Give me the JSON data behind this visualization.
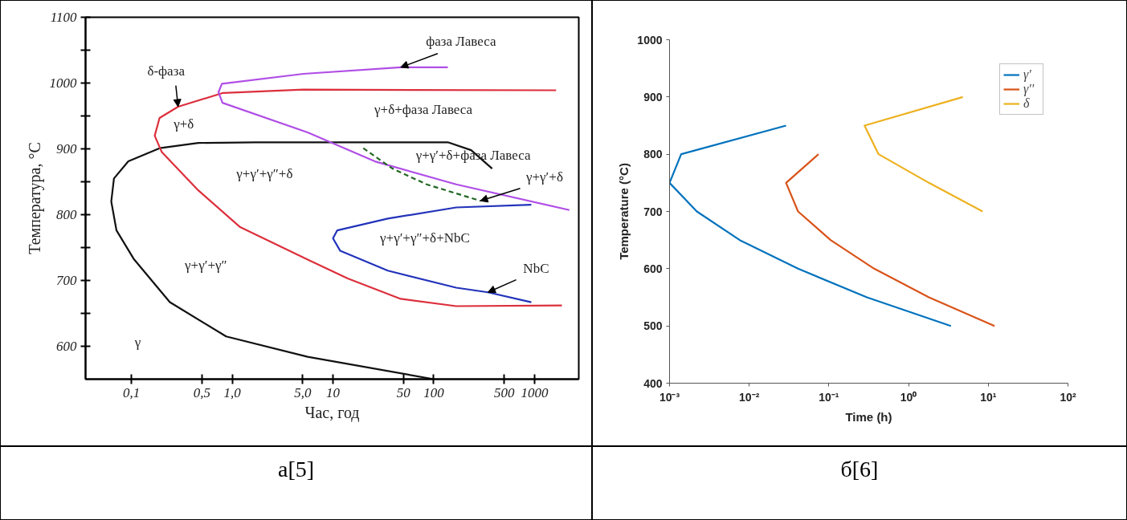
{
  "chart_data": [
    {
      "type": "line",
      "title": "а[5]",
      "xlabel": "Час, год",
      "ylabel": "Температура, °С",
      "log": "x",
      "xlim": [
        0.035,
        2750
      ],
      "ylim": [
        550,
        1100
      ],
      "xticks": [
        {
          "value": 0.1,
          "label": "0,1"
        },
        {
          "value": 0.5,
          "label": "0,5"
        },
        {
          "value": 1,
          "label": "1,0"
        },
        {
          "value": 5,
          "label": "5,0"
        },
        10,
        50,
        100,
        500,
        1000
      ],
      "yticks": [
        600,
        {
          "value": 650,
          "label": null
        },
        700,
        {
          "value": 750,
          "label": null
        },
        800,
        {
          "value": 850,
          "label": null
        },
        900,
        {
          "value": 950,
          "label": null
        },
        1000,
        {
          "value": 1050,
          "label": null
        },
        1100
      ],
      "grid": false,
      "legend": false,
      "series": [
        {
          "color": "#111111",
          "x": [
            100,
            5.6,
            0.87,
            0.24,
            0.105,
            0.071,
            0.063,
            0.067,
            0.093,
            0.19,
            0.46,
            1.7,
            138,
            235,
            380
          ],
          "values": [
            550,
            584,
            615,
            667,
            733,
            776,
            820,
            855,
            881,
            901,
            909,
            910,
            910,
            898,
            870
          ]
        },
        {
          "color": "#dc2f3c",
          "x": [
            1640,
            5.1,
            0.81,
            0.29,
            0.19,
            0.17,
            0.2,
            0.46,
            1.2,
            5.4,
            14,
            47,
            167,
            1870
          ],
          "values": [
            989,
            990,
            985,
            964,
            947,
            920,
            895,
            837,
            781,
            733,
            703,
            672,
            661,
            662
          ]
        },
        {
          "color": "#b04ee6",
          "x": [
            138,
            47,
            5.1,
            0.79,
            0.73,
            0.8,
            5.6,
            26,
            167,
            2220
          ],
          "values": [
            1024,
            1024,
            1014,
            999,
            986,
            970,
            925,
            881,
            846,
            807
          ]
        },
        {
          "color": "#2233bb",
          "x": [
            930,
            167,
            35,
            11,
            10,
            11.8,
            35,
            167,
            345,
            930
          ],
          "values": [
            815,
            811,
            794,
            776,
            764,
            745,
            715,
            689,
            682,
            667
          ]
        },
        {
          "color": "#226622",
          "line_style": "dashed",
          "x": [
            20,
            39,
            85,
            290
          ],
          "values": [
            901,
            870,
            846,
            821
          ]
        }
      ],
      "annotations": [
        {
          "text": "δ-фаза",
          "x": 0.29,
          "y": 964
        },
        {
          "text": "фаза Лавеса",
          "x": 47,
          "y": 1024
        },
        {
          "text": "γ+γ′+δ",
          "x": 290,
          "y": 821
        },
        {
          "text": "NbC",
          "x": 345,
          "y": 682
        },
        "γ+δ",
        "γ+δ+фаза Лавеса",
        "γ+γ′+δ+фаза Лавеса",
        "γ+γ′+γ″+δ",
        "γ+γ′+γ″+δ+NbC",
        "γ+γ′+γ″",
        "γ"
      ]
    },
    {
      "type": "line",
      "title": "б[6]",
      "xlabel": "Time (h)",
      "ylabel": "Temperature (°C)",
      "log": "x",
      "xlim": [
        0.001,
        100
      ],
      "ylim": [
        400,
        1000
      ],
      "xticks": [
        {
          "value": 0.001,
          "label": "10⁻³"
        },
        {
          "value": 0.01,
          "label": "10⁻²"
        },
        {
          "value": 0.1,
          "label": "10⁻¹"
        },
        {
          "value": 1,
          "label": "10⁰"
        },
        {
          "value": 10,
          "label": "10¹"
        },
        {
          "value": 100,
          "label": "10²"
        }
      ],
      "yticks": [
        400,
        500,
        600,
        700,
        800,
        900,
        1000
      ],
      "grid": false,
      "legend": "top right",
      "series": [
        {
          "name": "γ'",
          "color": "#0072bd",
          "x": [
            0.029,
            0.0014,
            0.001,
            0.0022,
            0.0076,
            0.041,
            0.3,
            3.4
          ],
          "values": [
            850,
            800,
            750,
            700,
            650,
            600,
            550,
            500
          ]
        },
        {
          "name": "γ''",
          "color": "#d95319",
          "x": [
            0.074,
            0.029,
            0.041,
            0.105,
            0.37,
            1.8,
            12
          ],
          "values": [
            800,
            750,
            700,
            650,
            600,
            550,
            500
          ]
        },
        {
          "name": "δ",
          "color": "#edb120",
          "x": [
            4.8,
            0.28,
            0.42,
            1.8,
            8.5
          ],
          "values": [
            900,
            850,
            800,
            750,
            700
          ]
        }
      ]
    }
  ]
}
